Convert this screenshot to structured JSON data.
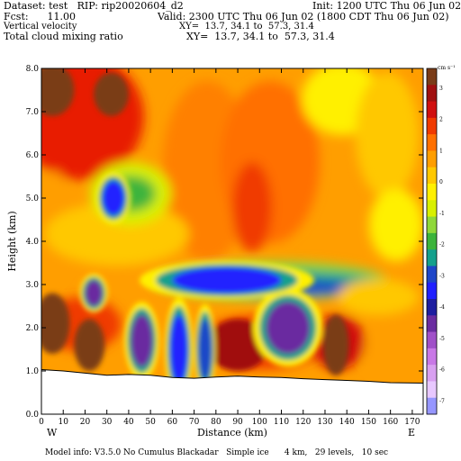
{
  "header": {
    "dataset": "Dataset: test   RIP: rip20020604_d2",
    "init": "Init: 1200 UTC Thu 06 Jun 02",
    "fcst": "Fcst:      11.00",
    "valid": "Valid: 2300 UTC Thu 06 Jun 02 (1800 CDT Thu 06 Jun 02)",
    "field1": "Vertical velocity",
    "xy1": "XY=  13.7, 34.1 to  57.3, 31.4",
    "field2": "Total cloud mixing ratio",
    "xy2": "XY=  13.7, 34.1 to  57.3, 31.4"
  },
  "footer": "Model info: V3.5.0 No Cumulus Blackadar   Simple ice      4 km,   29 levels,   10 sec",
  "chart_data": {
    "type": "heatmap",
    "xlabel": "Distance (km)",
    "ylabel": "Height (km)",
    "xlim": [
      0,
      175
    ],
    "ylim": [
      0,
      8
    ],
    "x_ticks": [
      "0",
      "10",
      "20",
      "30",
      "40",
      "50",
      "60",
      "70",
      "80",
      "90",
      "100",
      "110",
      "120",
      "130",
      "140",
      "150",
      "160",
      "170"
    ],
    "y_ticks": [
      "0.0",
      "1.0",
      "2.0",
      "3.0",
      "4.0",
      "5.0",
      "6.0",
      "7.0",
      "8.0"
    ],
    "x_end_labels": {
      "left": "W",
      "right": "E"
    },
    "colorbar": {
      "unit": "cm s⁻¹",
      "labels": [
        "3",
        "2",
        "1",
        "0",
        "-1",
        "-2",
        "-3",
        "-4",
        "-5",
        "-6",
        "-7"
      ],
      "colors": [
        "#7a3c18",
        "#a01010",
        "#d01010",
        "#f03a00",
        "#ff7000",
        "#ff9e00",
        "#ffc800",
        "#fff000",
        "#d8f000",
        "#8fd83a",
        "#3cb43c",
        "#14a08c",
        "#1e46c8",
        "#2020ff",
        "#1e1ea0",
        "#6a2ca0",
        "#a050c8",
        "#c878e6",
        "#d8a0f0",
        "#e8c8ff",
        "#9696ff"
      ]
    },
    "terrain_height_km": [
      [
        0,
        1.03
      ],
      [
        10,
        1.0
      ],
      [
        20,
        0.95
      ],
      [
        30,
        0.9
      ],
      [
        40,
        0.92
      ],
      [
        50,
        0.9
      ],
      [
        60,
        0.85
      ],
      [
        70,
        0.83
      ],
      [
        80,
        0.86
      ],
      [
        90,
        0.88
      ],
      [
        100,
        0.86
      ],
      [
        110,
        0.85
      ],
      [
        120,
        0.82
      ],
      [
        130,
        0.8
      ],
      [
        140,
        0.78
      ],
      [
        150,
        0.76
      ],
      [
        160,
        0.73
      ],
      [
        175,
        0.72
      ]
    ],
    "features": [
      {
        "kind": "updraft",
        "label": "3",
        "x_km": 5,
        "z_km": 7.5,
        "rx": 10,
        "rz": 0.6
      },
      {
        "kind": "updraft",
        "label": "3",
        "x_km": 32,
        "z_km": 7.4,
        "rx": 8,
        "rz": 0.5
      },
      {
        "kind": "updraft",
        "label": "2",
        "x_km": 90,
        "z_km": 1.6,
        "rx": 14,
        "rz": 0.6
      },
      {
        "kind": "updraft",
        "label": "3",
        "x_km": 135,
        "z_km": 1.6,
        "rx": 6,
        "rz": 0.7
      },
      {
        "kind": "updraft",
        "label": "3",
        "x_km": 5,
        "z_km": 2.1,
        "rx": 8,
        "rz": 0.7
      },
      {
        "kind": "updraft",
        "label": "3",
        "x_km": 22,
        "z_km": 1.6,
        "rx": 7,
        "rz": 0.6
      },
      {
        "kind": "downdraft",
        "label": "-4",
        "x_km": 33,
        "z_km": 5.0,
        "rx": 5,
        "rz": 0.4
      },
      {
        "kind": "downdraft",
        "label": "-5",
        "x_km": 24,
        "z_km": 2.8,
        "rx": 4,
        "rz": 0.3
      },
      {
        "kind": "downdraft",
        "label": "-5",
        "x_km": 46,
        "z_km": 1.7,
        "rx": 5,
        "rz": 0.6
      },
      {
        "kind": "downdraft",
        "label": "-4",
        "x_km": 63,
        "z_km": 1.5,
        "rx": 4,
        "rz": 0.8
      },
      {
        "kind": "downdraft",
        "label": "-3",
        "x_km": 75,
        "z_km": 1.5,
        "rx": 3,
        "rz": 0.7
      },
      {
        "kind": "downdraft",
        "label": "-5",
        "x_km": 113,
        "z_km": 2.0,
        "rx": 10,
        "rz": 0.6
      },
      {
        "kind": "downdraft",
        "label": "-4",
        "x_km": 85,
        "z_km": 3.1,
        "rx": 25,
        "rz": 0.3
      }
    ]
  }
}
